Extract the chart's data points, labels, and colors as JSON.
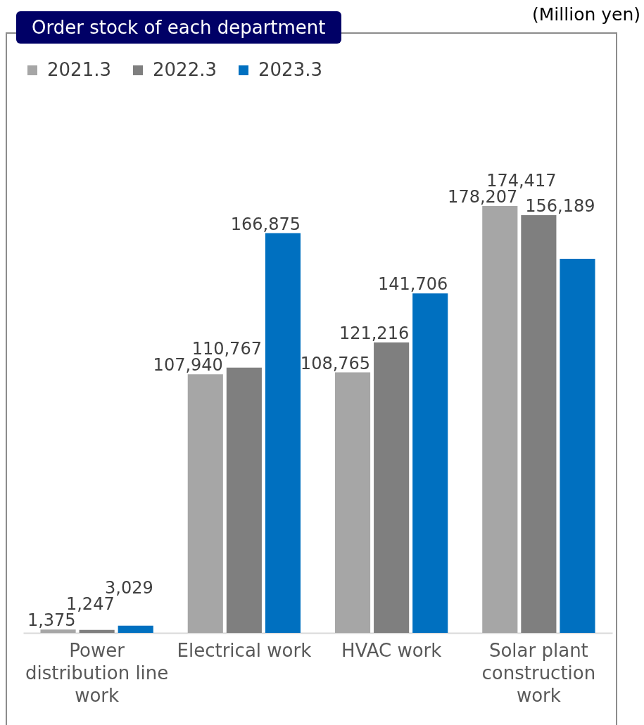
{
  "chart_data": {
    "type": "bar",
    "title": "Order stock of each department",
    "annotations": [
      "(Million yen)"
    ],
    "categories": [
      "Power distribution line work",
      "Electrical work",
      "HVAC work",
      "Solar plant construction work"
    ],
    "series": [
      {
        "name": "2021.3",
        "color": "#a6a6a6",
        "values": [
          1375,
          107940,
          108765,
          178207
        ],
        "value_labels": [
          "1,375",
          "107,940",
          "108,765",
          "178,207"
        ]
      },
      {
        "name": "2022.3",
        "color": "#7f7f7f",
        "values": [
          1247,
          110767,
          121216,
          174417
        ],
        "value_labels": [
          "1,247",
          "110,767",
          "121,216",
          "174,417"
        ]
      },
      {
        "name": "2023.3",
        "color": "#0070c0",
        "values": [
          3029,
          166875,
          141706,
          156189
        ],
        "value_labels": [
          "3,029",
          "166,875",
          "141,706",
          "156,189"
        ]
      }
    ],
    "legend": "top left"
  }
}
